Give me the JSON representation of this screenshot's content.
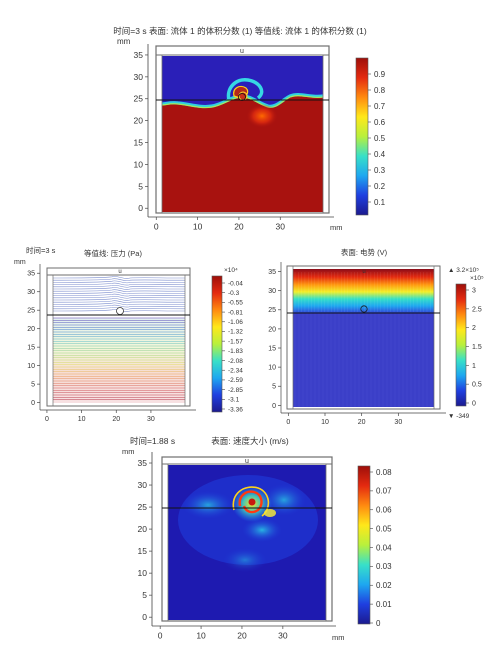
{
  "colors": {
    "jet": [
      "#1c1a8f",
      "#1f3fe0",
      "#1ea7f0",
      "#38e0c8",
      "#b8f03c",
      "#ffe81a",
      "#ff8a10",
      "#e42a10",
      "#9e0f0a"
    ],
    "frame": "#6e6e6e",
    "interface_line": "#111111"
  },
  "chart_data": [
    {
      "id": "vof",
      "type": "heatmap",
      "header": "时间=3 s  表面: 流体 1 的体积分数 (1)  等值线: 流体 1 的体积分数 (1)",
      "unit_label": "mm",
      "domain_top_label": "u",
      "x_ticks": [
        0,
        10,
        20,
        30
      ],
      "y_ticks": [
        0,
        5,
        10,
        15,
        20,
        25,
        30,
        35
      ],
      "xlim": [
        -2,
        43
      ],
      "ylim": [
        -2,
        37.5
      ],
      "colorbar": {
        "range": [
          0,
          1
        ],
        "ticks": [
          "0.9",
          "0.8",
          "0.7",
          "0.6",
          "0.5",
          "0.4",
          "0.3",
          "0.2",
          "0.1"
        ]
      }
    },
    {
      "id": "pressure",
      "type": "line",
      "header_left": "时间=3 s",
      "header_center": "等值线: 压力 (Pa)",
      "unit_label": "mm",
      "domain_top_label": "u",
      "x_ticks": [
        0,
        10,
        20,
        30
      ],
      "y_ticks": [
        0,
        5,
        10,
        15,
        20,
        25,
        30,
        35
      ],
      "xlim": [
        -2,
        43
      ],
      "ylim": [
        -2,
        37.5
      ],
      "colorbar": {
        "exponent": "×10⁴",
        "ticks": [
          "-0.04",
          "-0.3",
          "-0.55",
          "-0.81",
          "-1.06",
          "-1.32",
          "-1.57",
          "-1.83",
          "-2.08",
          "-2.34",
          "-2.59",
          "-2.85",
          "-3.1",
          "-3.36"
        ]
      }
    },
    {
      "id": "potential",
      "type": "heatmap",
      "header_center": "表面: 电势 (V)",
      "domain_top_label": "u",
      "x_ticks": [
        0,
        10,
        20,
        30
      ],
      "y_ticks": [
        0,
        5,
        10,
        15,
        20,
        25,
        30,
        35
      ],
      "xlim": [
        -2,
        43
      ],
      "ylim": [
        -2,
        37.5
      ],
      "colorbar": {
        "max_label": "▲ 3.2×10⁵",
        "exponent": "×10⁵",
        "ticks": [
          "3",
          "2.5",
          "2",
          "1.5",
          "1",
          "0.5",
          "0"
        ],
        "min_label": "▼ -349"
      }
    },
    {
      "id": "velocity",
      "type": "heatmap",
      "header_left": "时间=1.88 s",
      "header_center": "表面: 速度大小 (m/s)",
      "unit_label": "mm",
      "domain_top_label": "u",
      "x_ticks": [
        0,
        10,
        20,
        30
      ],
      "y_ticks": [
        0,
        5,
        10,
        15,
        20,
        25,
        30,
        35
      ],
      "xlim": [
        -2,
        43
      ],
      "ylim": [
        -2,
        37.5
      ],
      "colorbar": {
        "range": [
          0,
          0.085
        ],
        "ticks": [
          "0.08",
          "0.07",
          "0.06",
          "0.05",
          "0.04",
          "0.03",
          "0.02",
          "0.01",
          "0"
        ]
      }
    }
  ]
}
